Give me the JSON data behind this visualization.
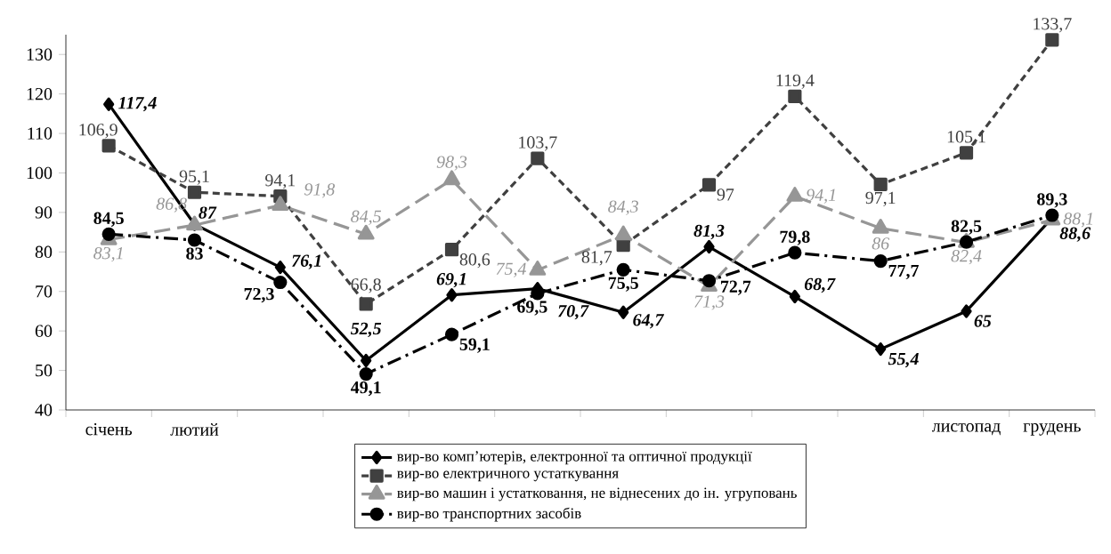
{
  "chart_data": {
    "type": "line",
    "categories": [
      "січень",
      "лютий",
      null,
      null,
      null,
      null,
      null,
      null,
      null,
      null,
      "листопад",
      "грудень"
    ],
    "ylim": [
      40,
      135
    ],
    "yticks": [
      40,
      50,
      60,
      70,
      80,
      90,
      100,
      110,
      120,
      130
    ],
    "grid": false,
    "legend": "bottom",
    "series": [
      {
        "name": "вир-во комп’ютерів, електронної та оптичної продукції",
        "color": "#000000",
        "marker": "diamond",
        "line_style": "solid",
        "values": [
          117.4,
          87,
          76.1,
          52.5,
          69.1,
          70.7,
          64.7,
          81.3,
          68.7,
          55.4,
          65,
          88.6
        ],
        "value_labels": [
          "117,4",
          "87",
          "76,1",
          "52,5",
          "69,1",
          "70,7",
          "64,7",
          "81,3",
          "68,7",
          "55,4",
          "65",
          "88,6"
        ]
      },
      {
        "name": "вир-во електричного устаткування",
        "color": "#404040",
        "marker": "square",
        "line_style": "dashed",
        "values": [
          106.9,
          95.1,
          94.1,
          66.8,
          80.6,
          103.7,
          81.7,
          97,
          119.4,
          97.1,
          105.1,
          133.7
        ],
        "value_labels": [
          "106,9",
          "95,1",
          "94,1",
          "66,8",
          "80,6",
          "103,7",
          "81,7",
          "97",
          "119,4",
          "97,1",
          "105,1",
          "133,7"
        ]
      },
      {
        "name": "вир-во машин і устатковання, не віднесених до ін. угруповань",
        "color": "#969696",
        "marker": "triangle",
        "line_style": "dashed",
        "values": [
          83.1,
          86.8,
          91.8,
          84.5,
          98.3,
          75.4,
          84.3,
          71.3,
          94.1,
          86,
          82.4,
          88.1
        ],
        "value_labels": [
          "83,1",
          "86,8",
          "91,8",
          "84,5",
          "98,3",
          "75,4",
          "84,3",
          "71,3",
          "94,1",
          "86",
          "82,4",
          "88,1"
        ]
      },
      {
        "name": "вир-во транспортних засобів",
        "color": "#000000",
        "marker": "circle",
        "line_style": "dashdot",
        "values": [
          84.5,
          83,
          72.3,
          49.1,
          59.1,
          69.5,
          75.5,
          72.7,
          79.8,
          77.7,
          82.5,
          89.3
        ],
        "value_labels": [
          "84,5",
          "83",
          "72,3",
          "49,1",
          "59,1",
          "69,5",
          "75,5",
          "72,7",
          "79,8",
          "77,7",
          "82,5",
          "89,3"
        ]
      }
    ]
  }
}
